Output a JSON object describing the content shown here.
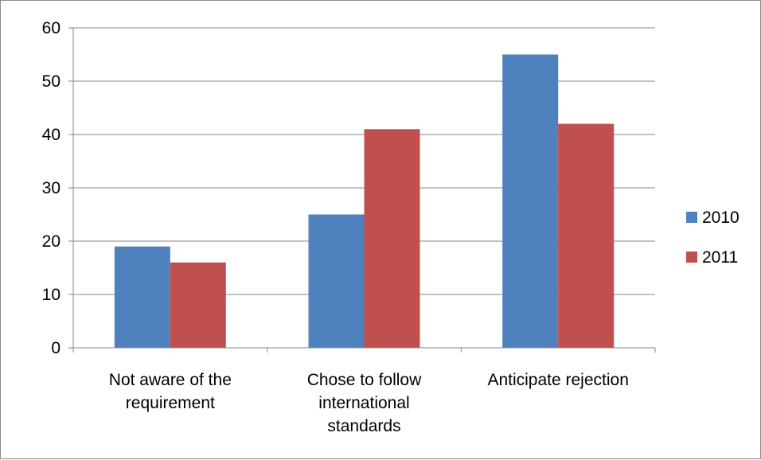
{
  "chart_data": {
    "type": "bar",
    "categories": [
      [
        "Not aware of the",
        "requirement"
      ],
      [
        "Chose to follow",
        "international",
        "standards"
      ],
      [
        "Anticipate rejection"
      ]
    ],
    "series": [
      {
        "name": "2010",
        "values": [
          19,
          25,
          55
        ],
        "color": "#4F81BD"
      },
      {
        "name": "2011",
        "values": [
          16,
          41,
          42
        ],
        "color": "#C0504D"
      }
    ],
    "ylim": [
      0,
      60
    ],
    "yticks": [
      0,
      10,
      20,
      30,
      40,
      50,
      60
    ],
    "grid": true,
    "legend": "right"
  }
}
